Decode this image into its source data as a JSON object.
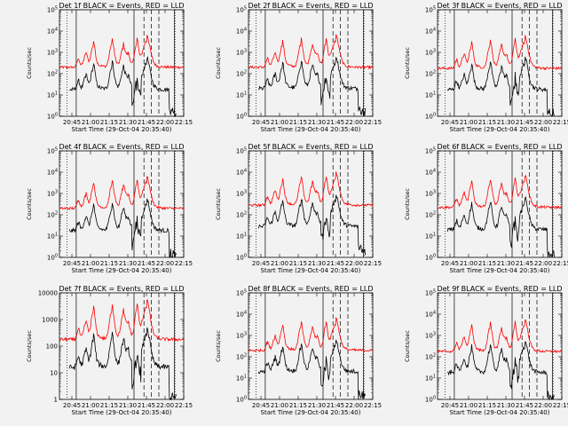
{
  "chart_data": {
    "type": "line",
    "xlabel": "Start Time (29-Oct-04 20:35:40)",
    "ylabel": "Counts/sec",
    "x_ticks": [
      "20:45",
      "21:00",
      "21:15",
      "21:30",
      "21:45",
      "22:00",
      "22:15"
    ],
    "x_range_minutes": [
      0,
      100
    ],
    "yscale": "log",
    "series_names": [
      "Events",
      "LLD"
    ],
    "colors": {
      "events": "#000000",
      "lld": "#ff0000",
      "frame": "#000000"
    },
    "panels": [
      {
        "title": "Det 1f BLACK = Events, RED = LLD",
        "ylim_exp": [
          0,
          5
        ],
        "y_ticks": [
          "10^0",
          "10^1",
          "10^2",
          "10^3",
          "10^4",
          "10^5"
        ],
        "lld_base_exp": 2.3,
        "events_scale": -0.3
      },
      {
        "title": "Det 2f BLACK = Events, RED = LLD",
        "ylim_exp": [
          0,
          5
        ],
        "y_ticks": [
          "10^0",
          "10^1",
          "10^2",
          "10^3",
          "10^4",
          "10^5"
        ],
        "lld_base_exp": 2.3,
        "events_scale": -0.25
      },
      {
        "title": "Det 3f BLACK = Events, RED = LLD",
        "ylim_exp": [
          0,
          5
        ],
        "y_ticks": [
          "10^0",
          "10^1",
          "10^2",
          "10^3",
          "10^4",
          "10^5"
        ],
        "lld_base_exp": 2.25,
        "events_scale": -0.25
      },
      {
        "title": "Det 4f BLACK = Events, RED = LLD",
        "ylim_exp": [
          0,
          5
        ],
        "y_ticks": [
          "10^0",
          "10^1",
          "10^2",
          "10^3",
          "10^4",
          "10^5"
        ],
        "lld_base_exp": 2.3,
        "events_scale": -0.3
      },
      {
        "title": "Det 5f BLACK = Events, RED = LLD",
        "ylim_exp": [
          0,
          5
        ],
        "y_ticks": [
          "10^0",
          "10^1",
          "10^2",
          "10^3",
          "10^4",
          "10^5"
        ],
        "lld_base_exp": 2.45,
        "events_scale": -0.25
      },
      {
        "title": "Det 6f BLACK = Events, RED = LLD",
        "ylim_exp": [
          0,
          5
        ],
        "y_ticks": [
          "10^0",
          "10^1",
          "10^2",
          "10^3",
          "10^4",
          "10^5"
        ],
        "lld_base_exp": 2.35,
        "events_scale": -0.3
      },
      {
        "title": "Det 7f BLACK = Events, RED = LLD",
        "ylim_exp": [
          0,
          4
        ],
        "y_ticks": [
          "1",
          "10",
          "100",
          "1000",
          "10000"
        ],
        "lld_base_exp": 2.25,
        "events_scale": -0.3
      },
      {
        "title": "Det 8f BLACK = Events, RED = LLD",
        "ylim_exp": [
          0,
          5
        ],
        "y_ticks": [
          "10^0",
          "10^1",
          "10^2",
          "10^3",
          "10^4",
          "10^5"
        ],
        "lld_base_exp": 2.3,
        "events_scale": -0.25
      },
      {
        "title": "Det 9f BLACK = Events, RED = LLD",
        "ylim_exp": [
          0,
          5
        ],
        "y_ticks": [
          "10^0",
          "10^1",
          "10^2",
          "10^3",
          "10^4",
          "10^5"
        ],
        "lld_base_exp": 2.25,
        "events_scale": -0.25
      }
    ],
    "markers": {
      "dotted_minutes": [
        6,
        93
      ],
      "solid_minutes": [
        13.5,
        60,
        92.5
      ],
      "dashed_minutes": [
        68,
        74,
        80
      ]
    },
    "events_start_minute": 8,
    "events_end_minute": 94,
    "flare_peaks": [
      {
        "minute": 15,
        "height": 0.35,
        "width": 1.5
      },
      {
        "minute": 21,
        "height": 0.55,
        "width": 2.0
      },
      {
        "minute": 27,
        "height": 0.95,
        "width": 2.2
      },
      {
        "minute": 42,
        "height": 1.05,
        "width": 2.5
      },
      {
        "minute": 51,
        "height": 0.85,
        "width": 2.2
      },
      {
        "minute": 55,
        "height": 0.45,
        "width": 2.0
      },
      {
        "minute": 62,
        "height": 1.05,
        "width": 2.0
      },
      {
        "minute": 70,
        "height": 1.15,
        "width": 4.0
      }
    ]
  }
}
